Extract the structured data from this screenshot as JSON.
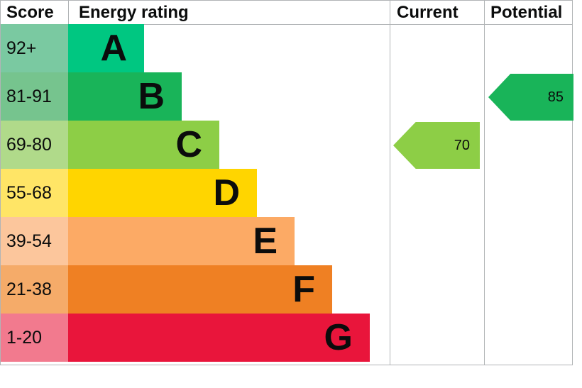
{
  "header": {
    "score_label": "Score",
    "energy_rating_label": "Energy rating",
    "current_label": "Current",
    "potential_label": "Potential"
  },
  "bands": [
    {
      "letter": "A",
      "score": "92+",
      "bar_color": "#00c781",
      "score_color": "#7ac9a1"
    },
    {
      "letter": "B",
      "score": "81-91",
      "bar_color": "#19b459",
      "score_color": "#76c48e"
    },
    {
      "letter": "C",
      "score": "69-80",
      "bar_color": "#8dce46",
      "score_color": "#b0da8a"
    },
    {
      "letter": "D",
      "score": "55-68",
      "bar_color": "#ffd500",
      "score_color": "#ffe566"
    },
    {
      "letter": "E",
      "score": "39-54",
      "bar_color": "#fcaa65",
      "score_color": "#fcc69c"
    },
    {
      "letter": "F",
      "score": "21-38",
      "bar_color": "#ef8023",
      "score_color": "#f5ab69"
    },
    {
      "letter": "G",
      "score": "1-20",
      "bar_color": "#e9153b",
      "score_color": "#f27a8e"
    }
  ],
  "current_marker": {
    "value": "70",
    "color": "#8dce46"
  },
  "potential_marker": {
    "value": "85",
    "color": "#19b459"
  },
  "chart_data": {
    "type": "bar",
    "title": "Energy rating",
    "categories": [
      "A",
      "B",
      "C",
      "D",
      "E",
      "F",
      "G"
    ],
    "score_ranges": [
      "92+",
      "81-91",
      "69-80",
      "55-68",
      "39-54",
      "21-38",
      "1-20"
    ],
    "band_colors": [
      "#00c781",
      "#19b459",
      "#8dce46",
      "#ffd500",
      "#fcaa65",
      "#ef8023",
      "#e9153b"
    ],
    "columns": [
      "Score",
      "Energy rating",
      "Current",
      "Potential"
    ],
    "markers": [
      {
        "name": "Current",
        "value": 70,
        "band": "C",
        "color": "#8dce46"
      },
      {
        "name": "Potential",
        "value": 85,
        "band": "B",
        "color": "#19b459"
      }
    ],
    "value_range": [
      1,
      100
    ],
    "grid": false,
    "legend_position": "none"
  }
}
